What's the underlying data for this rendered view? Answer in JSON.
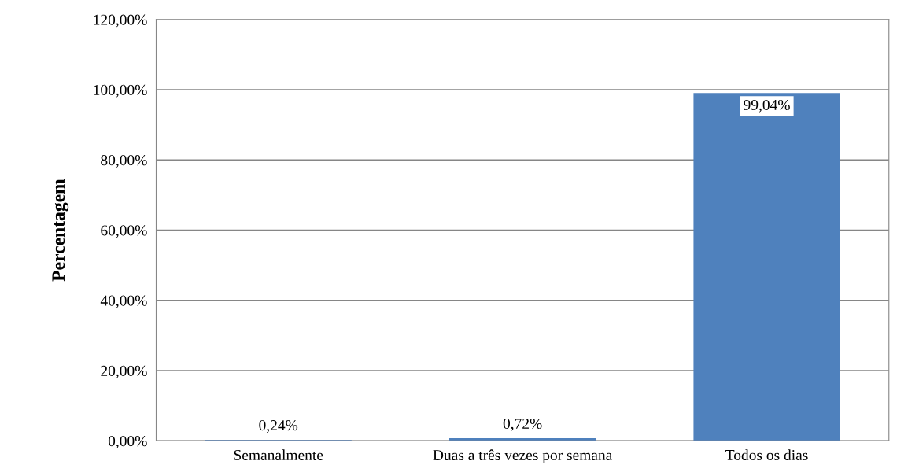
{
  "chart_data": {
    "type": "bar",
    "ylabel": "Percentagem",
    "categories": [
      "Semanalmente",
      "Duas a três vezes por semana",
      "Todos os dias"
    ],
    "values": [
      0.24,
      0.72,
      99.04
    ],
    "color": "#4f81bd",
    "value_labels": [
      "0,24%",
      "0,72%",
      "99,04%"
    ],
    "ylim": [
      0,
      120
    ],
    "yticks": [
      {
        "value": 0,
        "label": "0,00%"
      },
      {
        "value": 20,
        "label": "20,00%"
      },
      {
        "value": 40,
        "label": "40,00%"
      },
      {
        "value": 60,
        "label": "60,00%"
      },
      {
        "value": 80,
        "label": "80,00%"
      },
      {
        "value": 100,
        "label": "100,00%"
      },
      {
        "value": 120,
        "label": "120,00%"
      }
    ],
    "grid": "y"
  }
}
